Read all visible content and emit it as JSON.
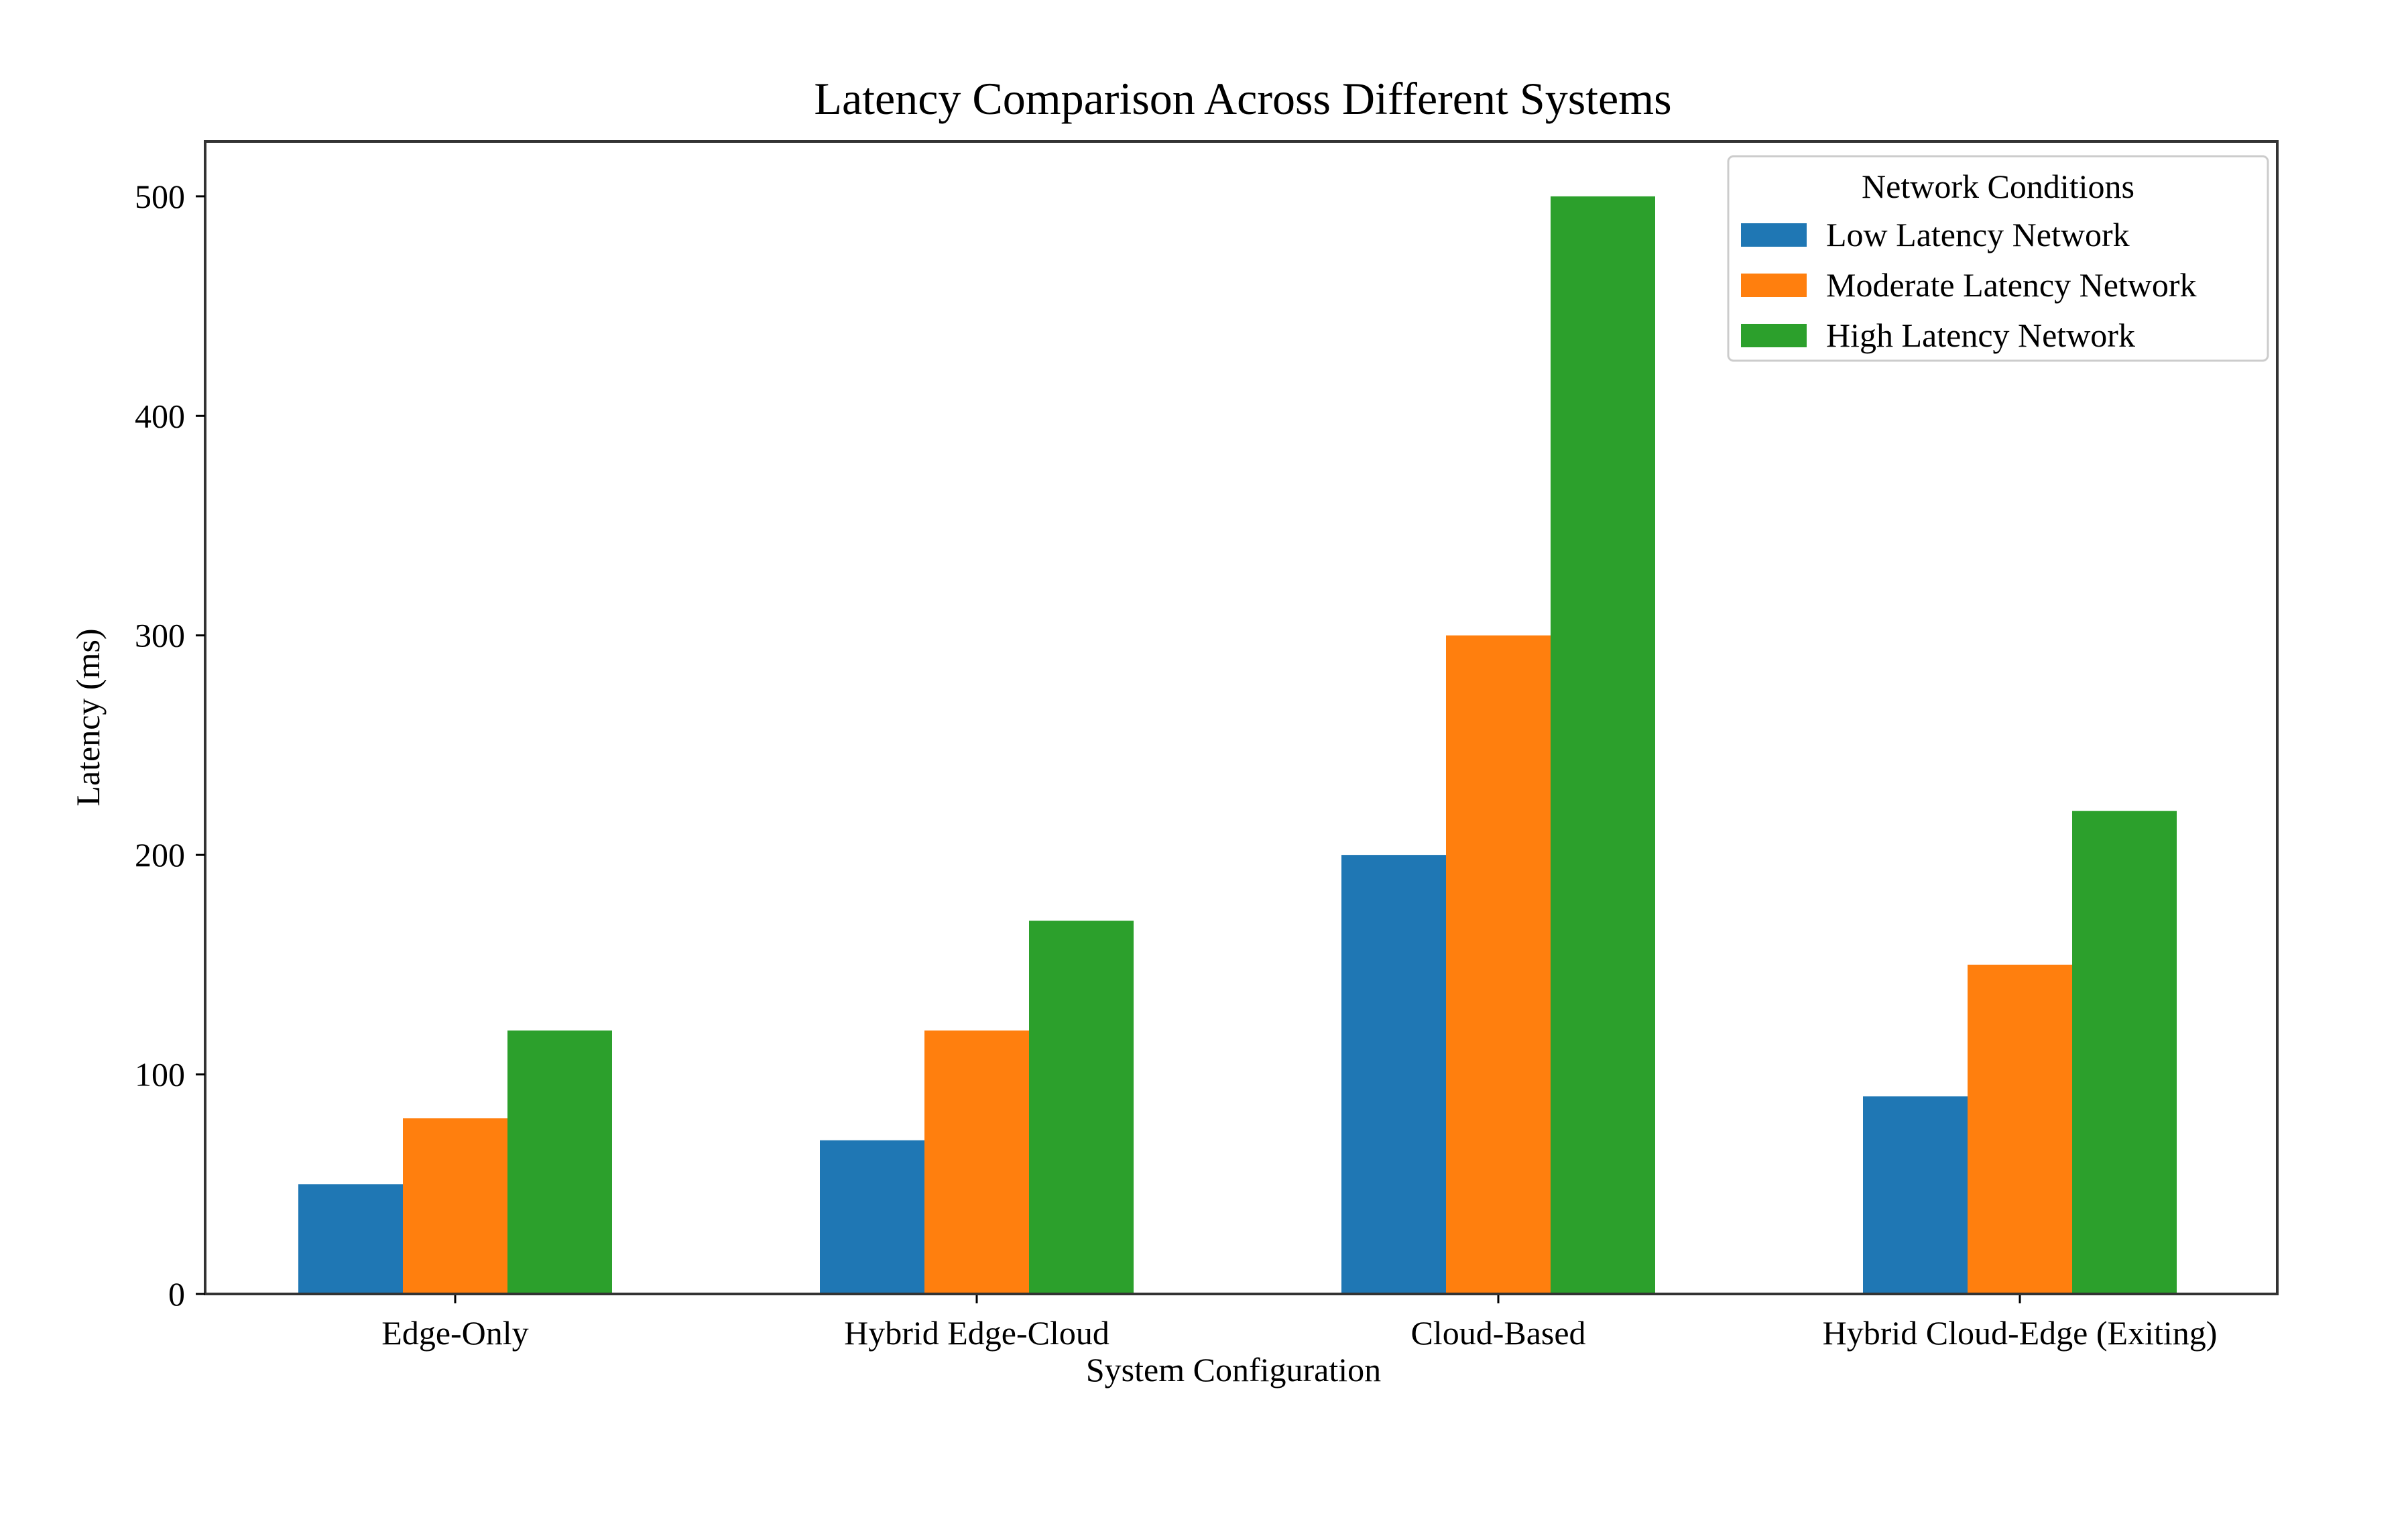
{
  "chart_data": {
    "type": "bar",
    "title": "Latency Comparison Across Different Systems",
    "xlabel": "System Configuration",
    "ylabel": "Latency (ms)",
    "categories": [
      "Edge-Only",
      "Hybrid Edge-Cloud",
      "Cloud-Based",
      "Hybrid Cloud-Edge (Exiting)"
    ],
    "series": [
      {
        "name": "Low Latency Network",
        "values": [
          50,
          70,
          200,
          90
        ],
        "color": "#1f77b4"
      },
      {
        "name": "Moderate Latency Network",
        "values": [
          80,
          120,
          300,
          150
        ],
        "color": "#ff7f0e"
      },
      {
        "name": "High Latency Network",
        "values": [
          120,
          170,
          500,
          220
        ],
        "color": "#2ca02c"
      }
    ],
    "ylim": [
      0,
      525
    ],
    "yticks": [
      0,
      100,
      200,
      300,
      400,
      500
    ],
    "grid": false,
    "legend": {
      "title": "Network Conditions",
      "placement": "upper-right"
    }
  }
}
